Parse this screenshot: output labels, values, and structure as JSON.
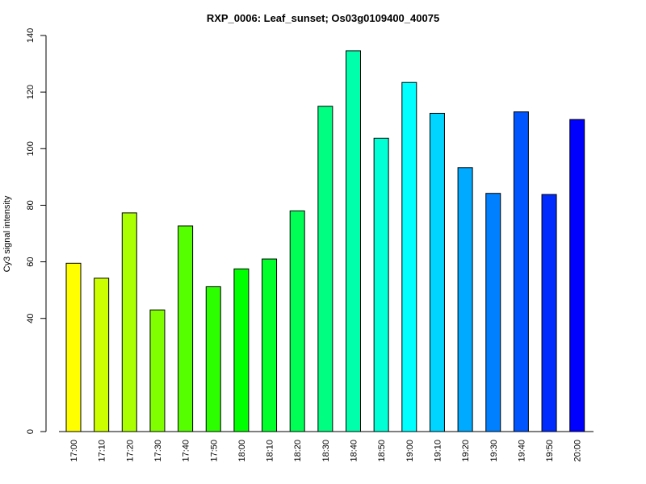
{
  "chart_data": {
    "type": "bar",
    "title": "RXP_0006: Leaf_sunset; Os03g0109400_40075",
    "xlabel": "",
    "ylabel": "Cy3 signal intensity",
    "categories": [
      "17:00",
      "17:10",
      "17:20",
      "17:30",
      "17:40",
      "17:50",
      "18:00",
      "18:10",
      "18:20",
      "18:30",
      "18:40",
      "18:50",
      "19:00",
      "19:10",
      "19:20",
      "19:30",
      "19:40",
      "19:50",
      "20:00"
    ],
    "values": [
      59.5,
      54.2,
      77.3,
      43.0,
      72.7,
      51.2,
      57.5,
      61.0,
      78.0,
      115.0,
      134.6,
      103.7,
      123.4,
      112.5,
      93.3,
      84.2,
      113.0,
      83.8,
      110.3
    ],
    "colors": [
      "#ffff00",
      "#ccff00",
      "#aaff00",
      "#80ff00",
      "#55ff00",
      "#2bff00",
      "#00ff00",
      "#00ff2b",
      "#00ff55",
      "#00ff80",
      "#00ffaa",
      "#00ffd5",
      "#00ffff",
      "#00d5ff",
      "#00aaff",
      "#0080ff",
      "#0055ff",
      "#002bff",
      "#0000ff"
    ],
    "yticks": [
      0,
      40,
      60,
      80,
      100,
      120,
      140
    ],
    "ylim": [
      0,
      140
    ],
    "grid": false,
    "legend": "none"
  }
}
